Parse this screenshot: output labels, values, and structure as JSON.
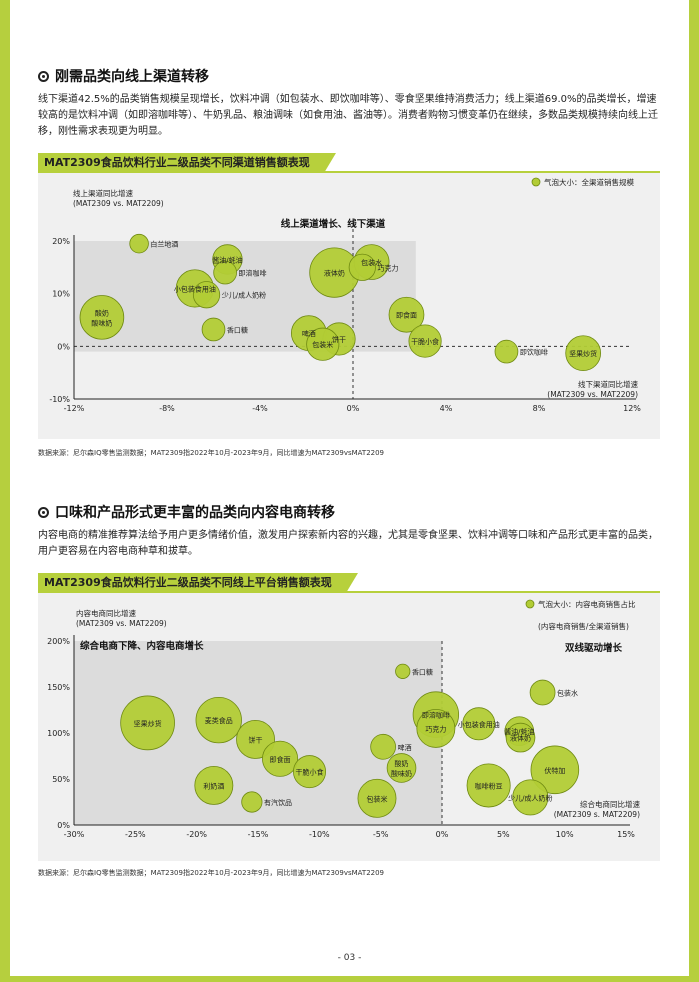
{
  "section1": {
    "title": "刚需品类向线上渠道转移",
    "paragraph": "线下渠道42.5%的品类销售规模呈现增长，饮料冲调（如包装水、即饮咖啡等）、零食坚果维持消费活力；线上渠道69.0%的品类增长，增速较高的是饮料冲调（如即溶咖啡等）、牛奶乳品、粮油调味（如食用油、酱油等）。消费者购物习惯变革仍在继续，多数品类规模持续向线上迁移，刚性需求表现更为明显。",
    "chart_title": "MAT2309食品饮料行业二级品类不同渠道销售额表现",
    "source": "数据来源：尼尔森IQ零售监测数据；MAT2309指2022年10月-2023年9月，同比增速为MAT2309vsMAT2209"
  },
  "section2": {
    "title": "口味和产品形式更丰富的品类向内容电商转移",
    "paragraph": "内容电商的精准推荐算法给予用户更多情绪价值，激发用户探索新内容的兴趣，尤其是零食坚果、饮料冲调等口味和产品形式更丰富的品类，用户更容易在内容电商种草和拔草。",
    "chart_title": "MAT2309食品饮料行业二级品类不同线上平台销售额表现",
    "source": "数据来源：尼尔森IQ零售监测数据；MAT2309指2022年10月-2023年9月，同比增速为MAT2309vsMAT2209"
  },
  "page_number": "- 03 -",
  "colors": {
    "accent": "#b7d03c",
    "bubble": "#b2cc35",
    "bubble_stroke": "#6f8a12",
    "highlight": "#dcdcdc"
  },
  "chart_data": [
    {
      "type": "scatter",
      "subtype": "bubble",
      "ylabel_line1": "线上渠道同比增速",
      "ylabel_line2": "(MAT2309 vs. MAT2209)",
      "xlabel_line1": "线下渠道同比增速",
      "xlabel_line2": "(MAT2309 vs. MAT2209)",
      "legend": "气泡大小：全渠道销售规模",
      "quadrant_label": "线上渠道增长、线下渠道",
      "xlim": [
        -12,
        12
      ],
      "ylim": [
        -10,
        20
      ],
      "x_ticks": [
        "-12%",
        "-8%",
        "-4%",
        "0%",
        "4%",
        "8%",
        "12%"
      ],
      "x_tick_values": [
        -12,
        -8,
        -4,
        0,
        4,
        8,
        12
      ],
      "y_ticks": [
        "20%",
        "10%",
        "0%",
        "-10%"
      ],
      "y_tick_values": [
        20,
        10,
        0,
        -10
      ],
      "points": [
        {
          "name": "白兰地酒",
          "x": -9.2,
          "y": 19.5,
          "size": 2
        },
        {
          "name": "酱油/蚝油",
          "x": -5.4,
          "y": 16.5,
          "size": 5
        },
        {
          "name": "即溶咖啡",
          "x": -5.5,
          "y": 14.0,
          "size": 3
        },
        {
          "name": "小包装食用油",
          "x": -6.8,
          "y": 11.0,
          "size": 8
        },
        {
          "name": "少儿/成人奶粉",
          "x": -6.3,
          "y": 9.8,
          "size": 4
        },
        {
          "name": "酸奶酸味奶",
          "x": -10.8,
          "y": 5.5,
          "size": 11
        },
        {
          "name": "香口糖",
          "x": -6.0,
          "y": 3.2,
          "size": 3
        },
        {
          "name": "液体奶",
          "x": -0.8,
          "y": 14.0,
          "size": 14
        },
        {
          "name": "包装水",
          "x": 0.8,
          "y": 16.0,
          "size": 7
        },
        {
          "name": "巧克力",
          "x": 0.4,
          "y": 15.0,
          "size": 4
        },
        {
          "name": "啤酒",
          "x": -1.9,
          "y": 2.5,
          "size": 7
        },
        {
          "name": "饼干",
          "x": -0.6,
          "y": 1.4,
          "size": 6
        },
        {
          "name": "包装米",
          "x": -1.3,
          "y": 0.4,
          "size": 6
        },
        {
          "name": "即食面",
          "x": 2.3,
          "y": 6.0,
          "size": 7
        },
        {
          "name": "干脆小食",
          "x": 3.1,
          "y": 1.0,
          "size": 6
        },
        {
          "name": "即饮咖啡",
          "x": 6.6,
          "y": -1.0,
          "size": 3
        },
        {
          "name": "坚果炒货",
          "x": 9.9,
          "y": -1.3,
          "size": 7
        }
      ]
    },
    {
      "type": "scatter",
      "subtype": "bubble",
      "ylabel_line1": "内容电商同比增速",
      "ylabel_line2": "(MAT2309 vs. MAT2209)",
      "xlabel_line1": "综合电商同比增速",
      "xlabel_line2": "(MAT2309 s. MAT2209)",
      "legend": "气泡大小：内容电商销售占比",
      "legend_sub": "(内容电商销售/全渠道销售)",
      "quadrant_label": "综合电商下降、内容电商增长",
      "quadrant_label_right": "双线驱动增长",
      "xlim": [
        -30,
        15
      ],
      "ylim": [
        0,
        200
      ],
      "x_ticks": [
        "-30%",
        "-25%",
        "-20%",
        "-15%",
        "-10%",
        "-5%",
        "0%",
        "5%",
        "10%",
        "15%"
      ],
      "x_tick_values": [
        -30,
        -25,
        -20,
        -15,
        -10,
        -5,
        0,
        5,
        10,
        15
      ],
      "y_ticks": [
        "200%",
        "150%",
        "100%",
        "50%",
        "0%"
      ],
      "y_tick_values": [
        200,
        150,
        100,
        50,
        0
      ],
      "points": [
        {
          "name": "坚果炒货",
          "x": -24.0,
          "y": 111,
          "size": 14
        },
        {
          "name": "麦类食品",
          "x": -18.2,
          "y": 114,
          "size": 10
        },
        {
          "name": "饼干",
          "x": -15.2,
          "y": 93,
          "size": 7
        },
        {
          "name": "即食面",
          "x": -13.2,
          "y": 72,
          "size": 6
        },
        {
          "name": "干脆小食",
          "x": -10.8,
          "y": 58,
          "size": 5
        },
        {
          "name": "利奶酒",
          "x": -18.6,
          "y": 43,
          "size": 7
        },
        {
          "name": "有汽饮品",
          "x": -15.5,
          "y": 25,
          "size": 2
        },
        {
          "name": "香口糖",
          "x": -3.2,
          "y": 167,
          "size": 1
        },
        {
          "name": "啤酒",
          "x": -4.8,
          "y": 85,
          "size": 3
        },
        {
          "name": "酸奶酸味奶",
          "x": -3.3,
          "y": 62,
          "size": 4
        },
        {
          "name": "包装米",
          "x": -5.3,
          "y": 29,
          "size": 7
        },
        {
          "name": "即溶咖啡",
          "x": -0.5,
          "y": 120,
          "size": 10
        },
        {
          "name": "巧克力",
          "x": -0.5,
          "y": 105,
          "size": 7
        },
        {
          "name": "小包装食用油",
          "x": 3.0,
          "y": 110,
          "size": 5
        },
        {
          "name": "咖啡粉豆",
          "x": 3.8,
          "y": 43,
          "size": 9
        },
        {
          "name": "包装水",
          "x": 8.2,
          "y": 144,
          "size": 3
        },
        {
          "name": "酱油/蚝油",
          "x": 6.3,
          "y": 102,
          "size": 4
        },
        {
          "name": "液体奶",
          "x": 6.4,
          "y": 95,
          "size": 4
        },
        {
          "name": "伏特加",
          "x": 9.2,
          "y": 60,
          "size": 11
        },
        {
          "name": "少儿/成人奶粉",
          "x": 7.2,
          "y": 30,
          "size": 6
        }
      ]
    }
  ]
}
